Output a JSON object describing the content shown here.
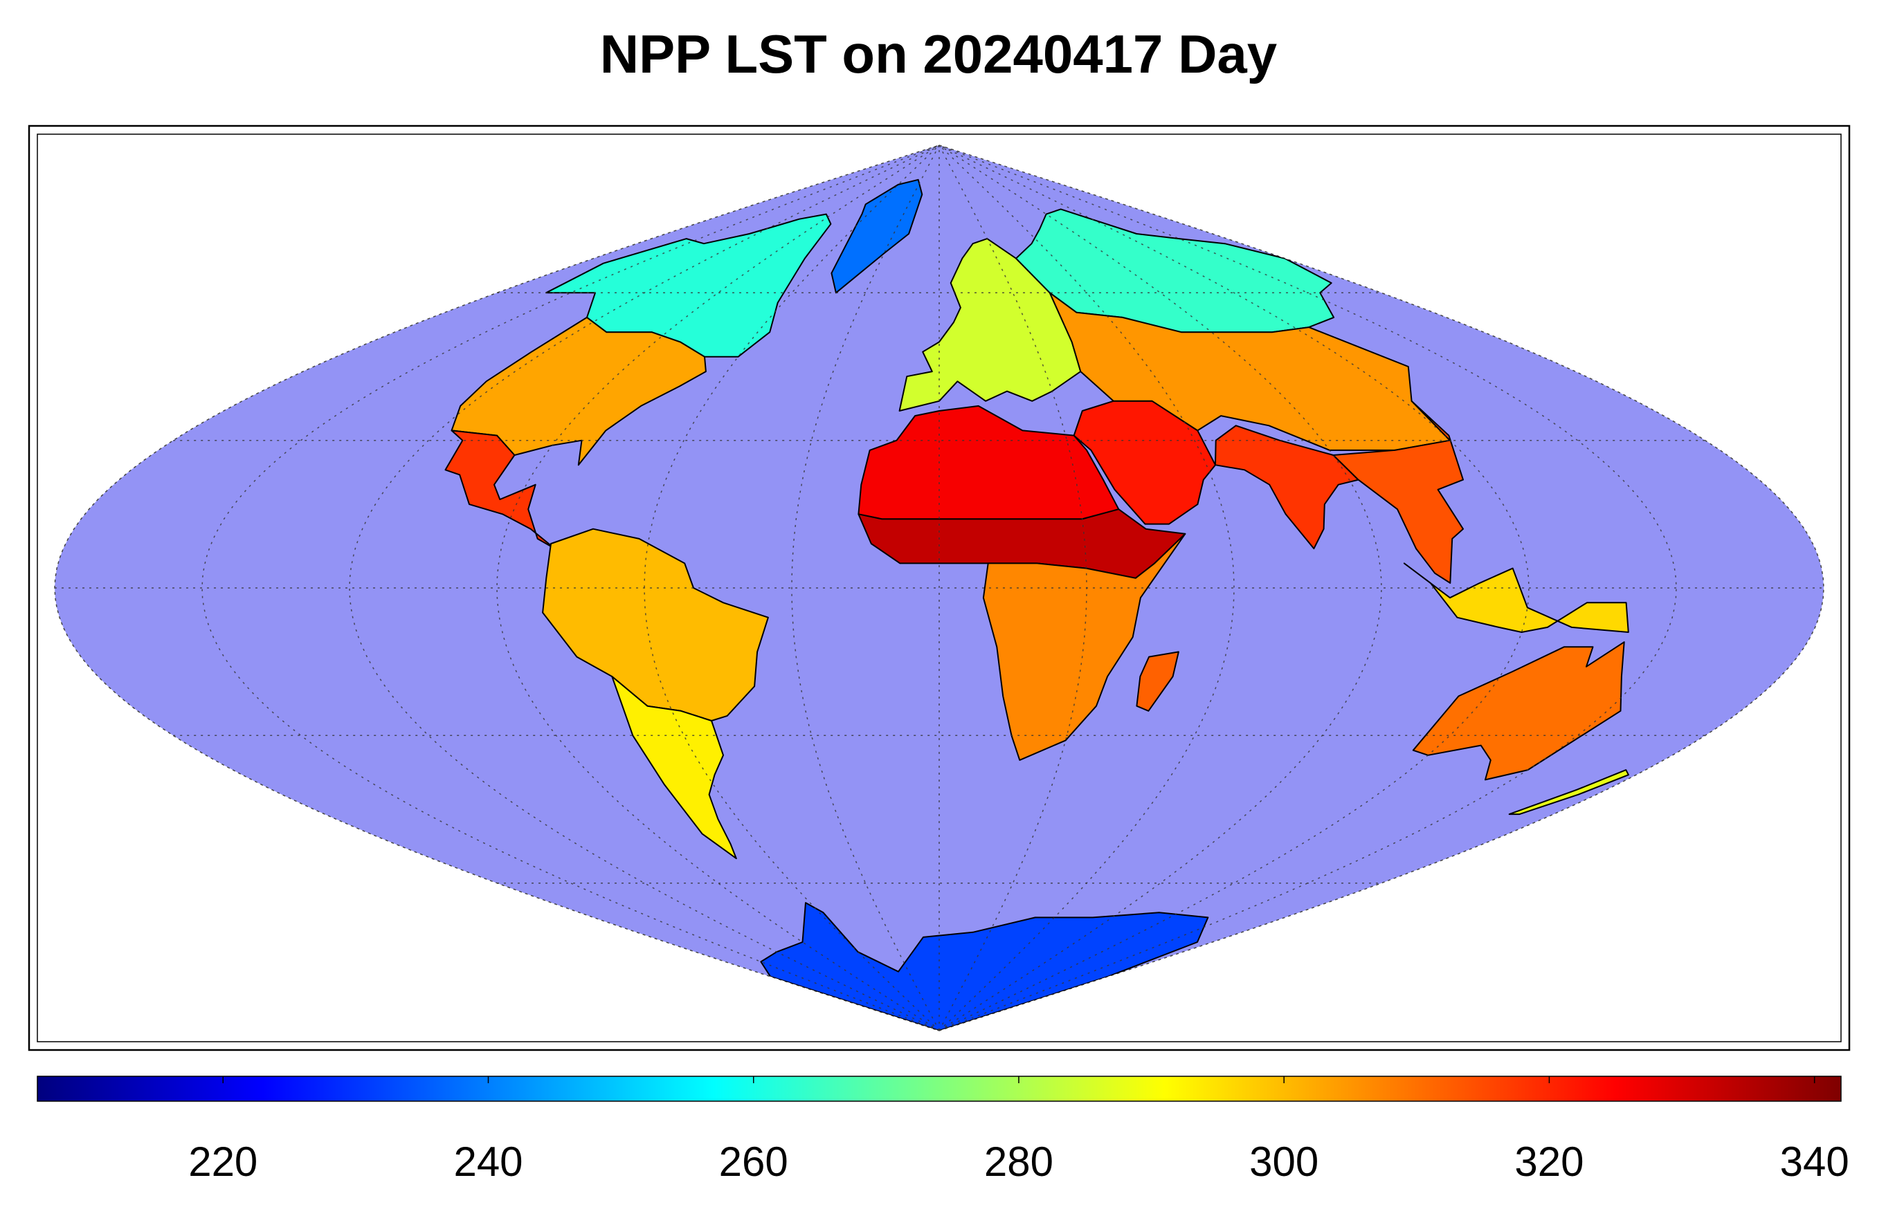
{
  "title": "NPP LST on 20240417 Day",
  "map": {
    "projection": "sinusoidal",
    "ocean_color": "#9393f5",
    "coastline_color": "#000000",
    "graticule": {
      "meridian_step_deg": 30,
      "parallel_step_deg": 30,
      "style": "dotted"
    },
    "legend_placement": "bottom"
  },
  "colorbar": {
    "colormap": "jet",
    "range": [
      206,
      342
    ],
    "ticks": [
      "220",
      "240",
      "260",
      "280",
      "300",
      "320",
      "340"
    ],
    "tick_values": [
      220,
      240,
      260,
      280,
      300,
      320,
      340
    ],
    "stops": [
      "#00007f",
      "#0000ff",
      "#007fff",
      "#00ffff",
      "#7fff7f",
      "#ffff00",
      "#ff7f00",
      "#ff0000",
      "#7f0000"
    ]
  },
  "regions": [
    {
      "name": "north-america-north",
      "value": 262
    },
    {
      "name": "north-america-central",
      "value": 303
    },
    {
      "name": "mexico",
      "value": 318
    },
    {
      "name": "greenland",
      "value": 238
    },
    {
      "name": "south-america",
      "value": 300
    },
    {
      "name": "south-america-south",
      "value": 293
    },
    {
      "name": "europe",
      "value": 285
    },
    {
      "name": "north-africa",
      "value": 326
    },
    {
      "name": "sahel",
      "value": 333
    },
    {
      "name": "southern-africa",
      "value": 307
    },
    {
      "name": "madagascar",
      "value": 312
    },
    {
      "name": "middle-east",
      "value": 322
    },
    {
      "name": "siberia",
      "value": 264
    },
    {
      "name": "central-asia",
      "value": 305
    },
    {
      "name": "india",
      "value": 318
    },
    {
      "name": "southeast-asia",
      "value": 314
    },
    {
      "name": "indonesia",
      "value": 296
    },
    {
      "name": "australia",
      "value": 310
    },
    {
      "name": "new-zealand",
      "value": 288
    },
    {
      "name": "antarctica",
      "value": 232
    }
  ]
}
